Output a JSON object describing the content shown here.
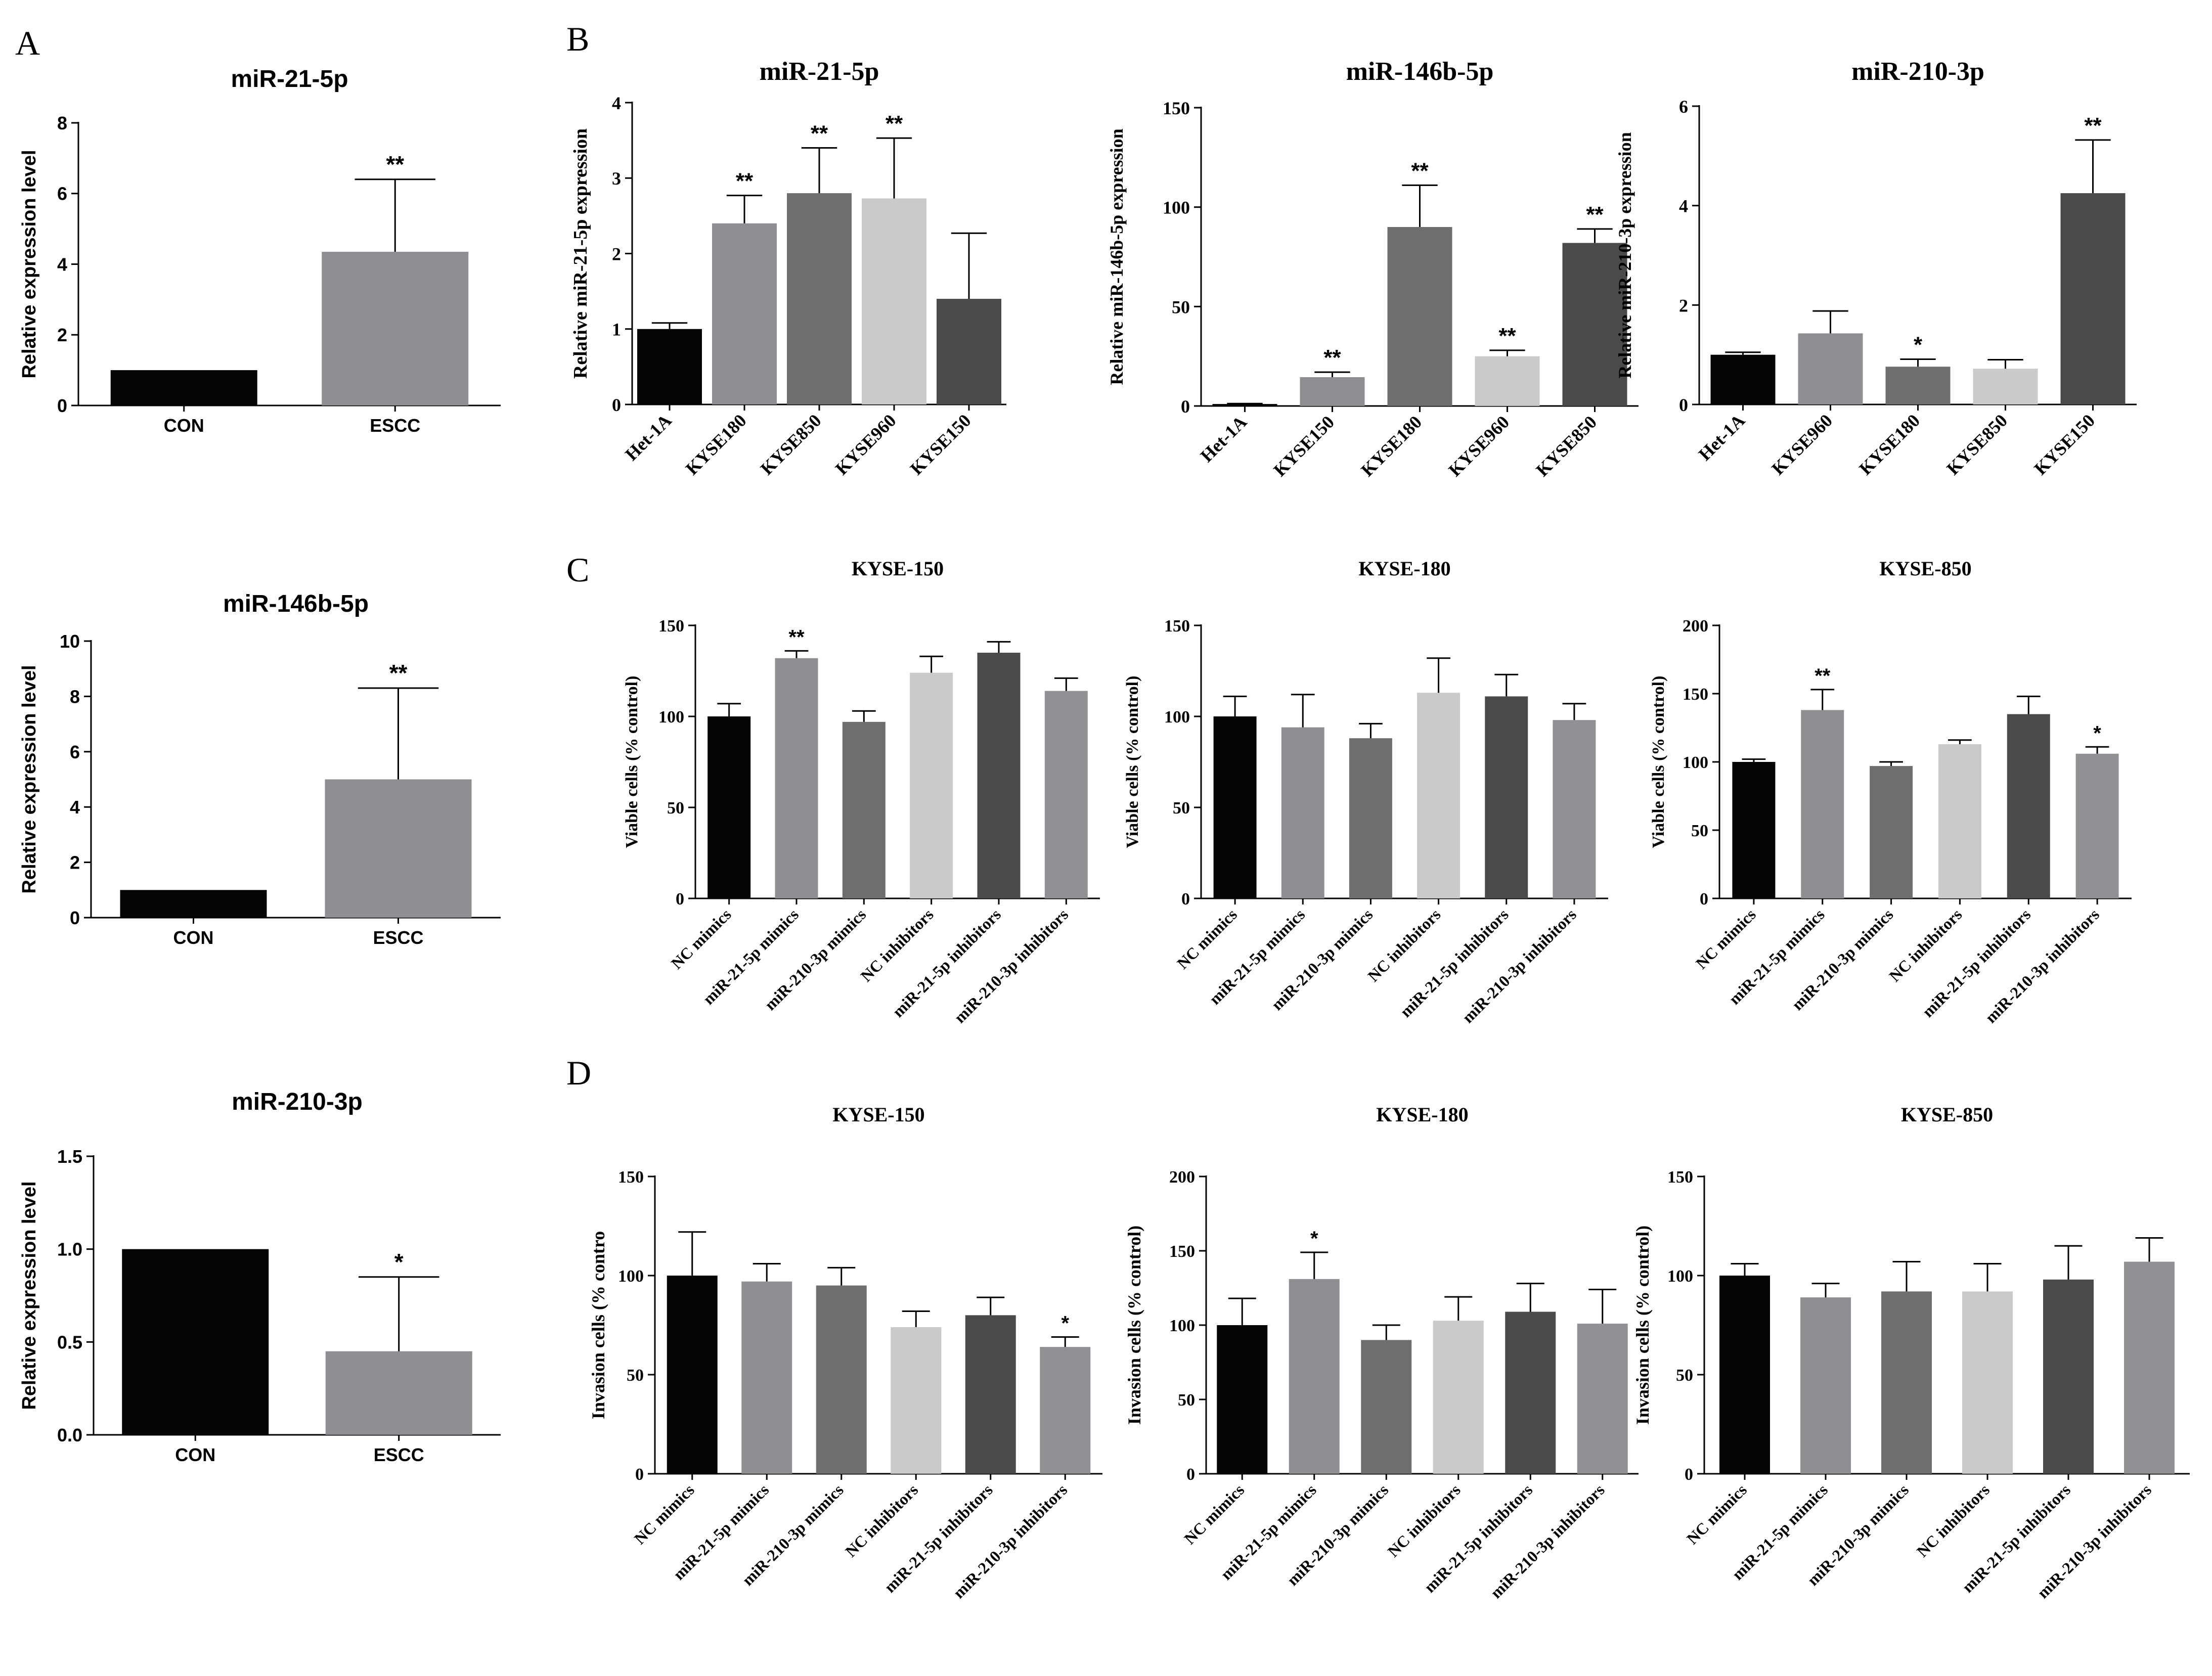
{
  "panel_labels": [
    "A",
    "B",
    "C",
    "D"
  ],
  "colors": {
    "black": "#050505",
    "mid_gray": "#8e8e93",
    "dark_gray": "#6e6e6e",
    "light_gray": "#cacaca",
    "darker_gray": "#4a4a4a",
    "gray_alt": "#919195"
  },
  "chart_data": [
    {
      "id": "A1",
      "type": "bar",
      "title": "miR-21-5p",
      "ylabel": "Relative expression level",
      "xlabel": "",
      "ylim": [
        0,
        8
      ],
      "yticks": [
        "0",
        "2",
        "4",
        "6",
        "8"
      ],
      "categories": [
        "CON",
        "ESCC"
      ],
      "values": [
        1.0,
        4.35
      ],
      "errors": [
        0.0,
        2.05
      ],
      "sig": [
        "",
        "**"
      ],
      "colors": [
        "#050505",
        "#8e8e93"
      ]
    },
    {
      "id": "A2",
      "type": "bar",
      "title": "miR-146b-5p",
      "ylabel": "Relative expression level",
      "xlabel": "",
      "ylim": [
        0,
        10
      ],
      "yticks": [
        "0",
        "2",
        "4",
        "6",
        "8",
        "10"
      ],
      "categories": [
        "CON",
        "ESCC"
      ],
      "values": [
        1.0,
        5.0
      ],
      "errors": [
        0.0,
        3.3
      ],
      "sig": [
        "",
        "**"
      ],
      "colors": [
        "#050505",
        "#8e8e93"
      ]
    },
    {
      "id": "A3",
      "type": "bar",
      "title": "miR-210-3p",
      "ylabel": "Relative expression level",
      "xlabel": "",
      "ylim": [
        0,
        1.5
      ],
      "yticks": [
        "0.0",
        "0.5",
        "1.0",
        "1.5"
      ],
      "categories": [
        "CON",
        "ESCC"
      ],
      "values": [
        1.0,
        0.45
      ],
      "errors": [
        0.0,
        0.4
      ],
      "sig": [
        "",
        "*"
      ],
      "colors": [
        "#050505",
        "#8e8e93"
      ]
    },
    {
      "id": "B1",
      "type": "bar",
      "title": "miR-21-5p",
      "ylabel": "Relative miR-21-5p expression",
      "xlabel": "",
      "ylim": [
        0,
        4
      ],
      "yticks": [
        "0",
        "1",
        "2",
        "3",
        "4"
      ],
      "categories": [
        "Het-1A",
        "KYSE180",
        "KYSE850",
        "KYSE960",
        "KYSE150"
      ],
      "values": [
        1.0,
        2.4,
        2.8,
        2.73,
        1.4
      ],
      "errors": [
        0.08,
        0.37,
        0.6,
        0.8,
        0.87
      ],
      "sig": [
        "",
        "**",
        "**",
        "**",
        ""
      ],
      "colors": [
        "#050505",
        "#8e8e93",
        "#6e6e6e",
        "#cacaca",
        "#4a4a4a"
      ]
    },
    {
      "id": "B2",
      "type": "bar",
      "title": "miR-146b-5p",
      "ylabel": "Relative miR-146b-5p expression",
      "xlabel": "",
      "ylim": [
        0,
        150
      ],
      "yticks": [
        "0",
        "50",
        "100",
        "150"
      ],
      "categories": [
        "Het-1A",
        "KYSE150",
        "KYSE180",
        "KYSE960",
        "KYSE850"
      ],
      "values": [
        1.0,
        14.5,
        90,
        25,
        82
      ],
      "errors": [
        0.2,
        2.5,
        21,
        3,
        7
      ],
      "sig": [
        "",
        "**",
        "**",
        "**",
        "**"
      ],
      "colors": [
        "#050505",
        "#8e8e93",
        "#6e6e6e",
        "#cacaca",
        "#4a4a4a"
      ]
    },
    {
      "id": "B3",
      "type": "bar",
      "title": "miR-210-3p",
      "ylabel": "Relative miR-210-3p expression",
      "xlabel": "",
      "ylim": [
        0,
        6
      ],
      "yticks": [
        "0",
        "2",
        "4",
        "6"
      ],
      "categories": [
        "Het-1A",
        "KYSE960",
        "KYSE180",
        "KYSE850",
        "KYSE150"
      ],
      "values": [
        1.0,
        1.43,
        0.76,
        0.72,
        4.25
      ],
      "errors": [
        0.05,
        0.45,
        0.15,
        0.18,
        1.07
      ],
      "sig": [
        "",
        "",
        "*",
        "",
        "**"
      ],
      "colors": [
        "#050505",
        "#8e8e93",
        "#6e6e6e",
        "#cacaca",
        "#4a4a4a"
      ]
    },
    {
      "id": "C1",
      "type": "bar",
      "title": "KYSE-150",
      "ylabel": "Viable cells (% control)",
      "xlabel": "",
      "ylim": [
        0,
        150
      ],
      "yticks": [
        "0",
        "50",
        "100",
        "150"
      ],
      "categories": [
        "NC mimics",
        "miR-21-5p mimics",
        "miR-210-3p mimics",
        "NC inhibitors",
        "miR-21-5p inhibitors",
        "miR-210-3p inhibitors"
      ],
      "values": [
        100,
        132,
        97,
        124,
        135,
        114
      ],
      "errors": [
        7,
        4,
        6,
        9,
        6,
        7
      ],
      "sig": [
        "",
        "**",
        "",
        "",
        "",
        ""
      ],
      "colors": [
        "#050505",
        "#8e8e93",
        "#6e6e6e",
        "#cacaca",
        "#4a4a4a",
        "#919195"
      ]
    },
    {
      "id": "C2",
      "type": "bar",
      "title": "KYSE-180",
      "ylabel": "Viable cells (% control)",
      "xlabel": "",
      "ylim": [
        0,
        150
      ],
      "yticks": [
        "0",
        "50",
        "100",
        "150"
      ],
      "categories": [
        "NC mimics",
        "miR-21-5p mimics",
        "miR-210-3p mimics",
        "NC inhibitors",
        "miR-21-5p inhibitors",
        "miR-210-3p inhibitors"
      ],
      "values": [
        100,
        94,
        88,
        113,
        111,
        98
      ],
      "errors": [
        11,
        18,
        8,
        19,
        12,
        9
      ],
      "sig": [
        "",
        "",
        "",
        "",
        "",
        ""
      ],
      "colors": [
        "#050505",
        "#8e8e93",
        "#6e6e6e",
        "#cacaca",
        "#4a4a4a",
        "#919195"
      ]
    },
    {
      "id": "C3",
      "type": "bar",
      "title": "KYSE-850",
      "ylabel": "Viable cells (% control)",
      "xlabel": "",
      "ylim": [
        0,
        200
      ],
      "yticks": [
        "0",
        "50",
        "100",
        "150",
        "200"
      ],
      "categories": [
        "NC mimics",
        "miR-21-5p mimics",
        "miR-210-3p mimics",
        "NC inhibitors",
        "miR-21-5p inhibitors",
        "miR-210-3p inhibitors"
      ],
      "values": [
        100,
        138,
        97,
        113,
        135,
        106
      ],
      "errors": [
        2,
        15,
        3,
        3,
        13,
        5
      ],
      "sig": [
        "",
        "**",
        "",
        "",
        "",
        "*"
      ],
      "colors": [
        "#050505",
        "#8e8e93",
        "#6e6e6e",
        "#cacaca",
        "#4a4a4a",
        "#919195"
      ]
    },
    {
      "id": "D1",
      "type": "bar",
      "title": "KYSE-150",
      "ylabel": "Invasion cells (% contro",
      "xlabel": "",
      "ylim": [
        0,
        150
      ],
      "yticks": [
        "0",
        "50",
        "100",
        "150"
      ],
      "categories": [
        "NC mimics",
        "miR-21-5p mimics",
        "miR-210-3p mimics",
        "NC inhibitors",
        "miR-21-5p inhibitors",
        "miR-210-3p inhibitors"
      ],
      "values": [
        100,
        97,
        95,
        74,
        80,
        64
      ],
      "errors": [
        22,
        9,
        9,
        8,
        9,
        5
      ],
      "sig": [
        "",
        "",
        "",
        "",
        "",
        "*"
      ],
      "colors": [
        "#050505",
        "#8e8e93",
        "#6e6e6e",
        "#cacaca",
        "#4a4a4a",
        "#919195"
      ]
    },
    {
      "id": "D2",
      "type": "bar",
      "title": "KYSE-180",
      "ylabel": "Invasion cells (% control)",
      "xlabel": "",
      "ylim": [
        0,
        200
      ],
      "yticks": [
        "0",
        "50",
        "100",
        "150",
        "200"
      ],
      "categories": [
        "NC mimics",
        "miR-21-5p mimics",
        "miR-210-3p mimics",
        "NC inhibitors",
        "miR-21-5p inhibitors",
        "miR-210-3p inhibitors"
      ],
      "values": [
        100,
        131,
        90,
        103,
        109,
        101
      ],
      "errors": [
        18,
        18,
        10,
        16,
        19,
        23
      ],
      "sig": [
        "",
        "*",
        "",
        "",
        "",
        ""
      ],
      "colors": [
        "#050505",
        "#8e8e93",
        "#6e6e6e",
        "#cacaca",
        "#4a4a4a",
        "#919195"
      ]
    },
    {
      "id": "D3",
      "type": "bar",
      "title": "KYSE-850",
      "ylabel": "Invasion cells (% control)",
      "xlabel": "",
      "ylim": [
        0,
        150
      ],
      "yticks": [
        "0",
        "50",
        "100",
        "150"
      ],
      "categories": [
        "NC mimics",
        "miR-21-5p mimics",
        "miR-210-3p mimics",
        "NC inhibitors",
        "miR-21-5p inhibitors",
        "miR-210-3p inhibitors"
      ],
      "values": [
        100,
        89,
        92,
        92,
        98,
        107
      ],
      "errors": [
        6,
        7,
        15,
        14,
        17,
        12
      ],
      "sig": [
        "",
        "",
        "",
        "",
        "",
        ""
      ],
      "colors": [
        "#050505",
        "#8e8e93",
        "#6e6e6e",
        "#cacaca",
        "#4a4a4a",
        "#919195"
      ]
    }
  ]
}
